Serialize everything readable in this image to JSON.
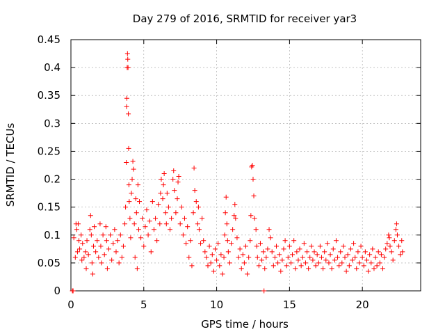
{
  "chart_data": {
    "type": "scatter",
    "title": "Day 279 of 2016, SRMTID for receiver yar3",
    "xlabel": "GPS time / hours",
    "ylabel": "SRMTID / TECUs",
    "xlim": [
      0,
      24
    ],
    "ylim": [
      0,
      0.45
    ],
    "xticks": [
      0,
      5,
      10,
      15,
      20
    ],
    "xtick_labels": [
      "0",
      "5",
      "10",
      "15",
      "20"
    ],
    "yticks": [
      0,
      0.05,
      0.1,
      0.15,
      0.2,
      0.25,
      0.3,
      0.35,
      0.4,
      0.45
    ],
    "ytick_labels": [
      "0",
      "0.05",
      "0.1",
      "0.15",
      "0.2",
      "0.25",
      "0.3",
      "0.35",
      "0.4",
      "0.45"
    ],
    "grid": true,
    "marker": "+",
    "color": "#ff0000",
    "series": [
      {
        "name": "SRMTID",
        "points": [
          [
            0.1,
            0.0
          ],
          [
            0.15,
            0.0
          ],
          [
            13.25,
            0.0
          ],
          [
            0.2,
            0.095
          ],
          [
            0.3,
            0.06
          ],
          [
            0.35,
            0.12
          ],
          [
            0.4,
            0.11
          ],
          [
            0.45,
            0.07
          ],
          [
            0.5,
            0.12
          ],
          [
            0.55,
            0.09
          ],
          [
            0.6,
            0.075
          ],
          [
            0.7,
            0.1
          ],
          [
            0.75,
            0.055
          ],
          [
            0.8,
            0.085
          ],
          [
            0.9,
            0.06
          ],
          [
            1.0,
            0.07
          ],
          [
            1.05,
            0.04
          ],
          [
            1.1,
            0.09
          ],
          [
            1.2,
            0.065
          ],
          [
            1.3,
            0.11
          ],
          [
            1.35,
            0.135
          ],
          [
            1.4,
            0.1
          ],
          [
            1.45,
            0.05
          ],
          [
            1.5,
            0.03
          ],
          [
            1.55,
            0.08
          ],
          [
            1.6,
            0.115
          ],
          [
            1.7,
            0.07
          ],
          [
            1.8,
            0.09
          ],
          [
            1.9,
            0.06
          ],
          [
            2.0,
            0.12
          ],
          [
            2.05,
            0.08
          ],
          [
            2.1,
            0.05
          ],
          [
            2.2,
            0.1
          ],
          [
            2.3,
            0.065
          ],
          [
            2.4,
            0.115
          ],
          [
            2.45,
            0.09
          ],
          [
            2.5,
            0.04
          ],
          [
            2.6,
            0.075
          ],
          [
            2.7,
            0.1
          ],
          [
            2.8,
            0.055
          ],
          [
            2.9,
            0.085
          ],
          [
            3.0,
            0.11
          ],
          [
            3.1,
            0.07
          ],
          [
            3.2,
            0.09
          ],
          [
            3.3,
            0.05
          ],
          [
            3.4,
            0.1
          ],
          [
            3.5,
            0.06
          ],
          [
            3.6,
            0.08
          ],
          [
            3.7,
            0.12
          ],
          [
            3.75,
            0.15
          ],
          [
            3.8,
            0.23
          ],
          [
            3.82,
            0.33
          ],
          [
            3.84,
            0.345
          ],
          [
            3.86,
            0.4
          ],
          [
            3.88,
            0.425
          ],
          [
            3.9,
            0.415
          ],
          [
            3.92,
            0.4
          ],
          [
            3.94,
            0.317
          ],
          [
            3.96,
            0.255
          ],
          [
            3.98,
            0.19
          ],
          [
            4.0,
            0.16
          ],
          [
            4.05,
            0.13
          ],
          [
            4.1,
            0.095
          ],
          [
            4.15,
            0.175
          ],
          [
            4.2,
            0.2
          ],
          [
            4.25,
            0.232
          ],
          [
            4.3,
            0.218
          ],
          [
            4.35,
            0.12
          ],
          [
            4.4,
            0.06
          ],
          [
            4.45,
            0.165
          ],
          [
            4.5,
            0.14
          ],
          [
            4.55,
            0.04
          ],
          [
            4.6,
            0.19
          ],
          [
            4.65,
            0.11
          ],
          [
            4.7,
            0.16
          ],
          [
            4.8,
            0.095
          ],
          [
            4.9,
            0.13
          ],
          [
            5.0,
            0.08
          ],
          [
            5.1,
            0.115
          ],
          [
            5.2,
            0.145
          ],
          [
            5.3,
            0.1
          ],
          [
            5.4,
            0.125
          ],
          [
            5.5,
            0.07
          ],
          [
            5.6,
            0.16
          ],
          [
            5.7,
            0.11
          ],
          [
            5.8,
            0.13
          ],
          [
            5.9,
            0.09
          ],
          [
            6.0,
            0.155
          ],
          [
            6.1,
            0.12
          ],
          [
            6.15,
            0.175
          ],
          [
            6.2,
            0.2
          ],
          [
            6.3,
            0.165
          ],
          [
            6.35,
            0.19
          ],
          [
            6.4,
            0.21
          ],
          [
            6.5,
            0.14
          ],
          [
            6.55,
            0.12
          ],
          [
            6.6,
            0.175
          ],
          [
            6.7,
            0.15
          ],
          [
            6.8,
            0.11
          ],
          [
            6.9,
            0.13
          ],
          [
            7.0,
            0.2
          ],
          [
            7.05,
            0.215
          ],
          [
            7.1,
            0.18
          ],
          [
            7.2,
            0.14
          ],
          [
            7.3,
            0.165
          ],
          [
            7.35,
            0.195
          ],
          [
            7.4,
            0.205
          ],
          [
            7.5,
            0.12
          ],
          [
            7.6,
            0.15
          ],
          [
            7.7,
            0.1
          ],
          [
            7.8,
            0.13
          ],
          [
            7.9,
            0.085
          ],
          [
            8.0,
            0.115
          ],
          [
            8.1,
            0.06
          ],
          [
            8.2,
            0.09
          ],
          [
            8.3,
            0.045
          ],
          [
            8.4,
            0.14
          ],
          [
            8.45,
            0.22
          ],
          [
            8.5,
            0.18
          ],
          [
            8.6,
            0.16
          ],
          [
            8.7,
            0.12
          ],
          [
            8.75,
            0.15
          ],
          [
            8.8,
            0.11
          ],
          [
            8.9,
            0.085
          ],
          [
            9.0,
            0.13
          ],
          [
            9.1,
            0.09
          ],
          [
            9.2,
            0.07
          ],
          [
            9.3,
            0.06
          ],
          [
            9.4,
            0.045
          ],
          [
            9.5,
            0.08
          ],
          [
            9.6,
            0.05
          ],
          [
            9.7,
            0.065
          ],
          [
            9.8,
            0.035
          ],
          [
            9.9,
            0.075
          ],
          [
            10.0,
            0.055
          ],
          [
            10.1,
            0.085
          ],
          [
            10.2,
            0.045
          ],
          [
            10.3,
            0.065
          ],
          [
            10.4,
            0.03
          ],
          [
            10.5,
            0.06
          ],
          [
            10.55,
            0.1
          ],
          [
            10.6,
            0.14
          ],
          [
            10.65,
            0.168
          ],
          [
            10.7,
            0.12
          ],
          [
            10.75,
            0.09
          ],
          [
            10.8,
            0.07
          ],
          [
            10.9,
            0.05
          ],
          [
            11.0,
            0.085
          ],
          [
            11.1,
            0.11
          ],
          [
            11.2,
            0.135
          ],
          [
            11.25,
            0.155
          ],
          [
            11.3,
            0.13
          ],
          [
            11.4,
            0.095
          ],
          [
            11.5,
            0.06
          ],
          [
            11.6,
            0.075
          ],
          [
            11.7,
            0.04
          ],
          [
            11.8,
            0.065
          ],
          [
            11.9,
            0.05
          ],
          [
            12.0,
            0.08
          ],
          [
            12.1,
            0.03
          ],
          [
            12.2,
            0.06
          ],
          [
            12.3,
            0.09
          ],
          [
            12.35,
            0.135
          ],
          [
            12.4,
            0.222
          ],
          [
            12.45,
            0.225
          ],
          [
            12.5,
            0.2
          ],
          [
            12.55,
            0.17
          ],
          [
            12.6,
            0.13
          ],
          [
            12.7,
            0.11
          ],
          [
            12.75,
            0.08
          ],
          [
            12.8,
            0.06
          ],
          [
            12.9,
            0.045
          ],
          [
            13.0,
            0.085
          ],
          [
            13.1,
            0.055
          ],
          [
            13.2,
            0.07
          ],
          [
            13.3,
            0.04
          ],
          [
            13.4,
            0.06
          ],
          [
            13.5,
            0.075
          ],
          [
            13.6,
            0.11
          ],
          [
            13.7,
            0.095
          ],
          [
            13.8,
            0.07
          ],
          [
            13.9,
            0.045
          ],
          [
            14.0,
            0.06
          ],
          [
            14.1,
            0.08
          ],
          [
            14.2,
            0.05
          ],
          [
            14.3,
            0.065
          ],
          [
            14.4,
            0.035
          ],
          [
            14.5,
            0.055
          ],
          [
            14.6,
            0.075
          ],
          [
            14.7,
            0.09
          ],
          [
            14.8,
            0.045
          ],
          [
            14.9,
            0.06
          ],
          [
            15.0,
            0.08
          ],
          [
            15.1,
            0.05
          ],
          [
            15.2,
            0.065
          ],
          [
            15.3,
            0.09
          ],
          [
            15.4,
            0.04
          ],
          [
            15.5,
            0.07
          ],
          [
            15.6,
            0.055
          ],
          [
            15.7,
            0.075
          ],
          [
            15.8,
            0.045
          ],
          [
            15.9,
            0.06
          ],
          [
            16.0,
            0.085
          ],
          [
            16.1,
            0.05
          ],
          [
            16.2,
            0.07
          ],
          [
            16.3,
            0.04
          ],
          [
            16.4,
            0.06
          ],
          [
            16.5,
            0.08
          ],
          [
            16.6,
            0.055
          ],
          [
            16.7,
            0.07
          ],
          [
            16.8,
            0.045
          ],
          [
            16.9,
            0.065
          ],
          [
            17.0,
            0.05
          ],
          [
            17.1,
            0.08
          ],
          [
            17.2,
            0.06
          ],
          [
            17.3,
            0.04
          ],
          [
            17.4,
            0.07
          ],
          [
            17.5,
            0.055
          ],
          [
            17.6,
            0.085
          ],
          [
            17.7,
            0.05
          ],
          [
            17.8,
            0.065
          ],
          [
            17.9,
            0.04
          ],
          [
            18.0,
            0.075
          ],
          [
            18.1,
            0.055
          ],
          [
            18.2,
            0.09
          ],
          [
            18.3,
            0.06
          ],
          [
            18.4,
            0.045
          ],
          [
            18.5,
            0.07
          ],
          [
            18.6,
            0.05
          ],
          [
            18.7,
            0.08
          ],
          [
            18.8,
            0.06
          ],
          [
            18.9,
            0.035
          ],
          [
            19.0,
            0.065
          ],
          [
            19.1,
            0.045
          ],
          [
            19.2,
            0.075
          ],
          [
            19.3,
            0.055
          ],
          [
            19.4,
            0.085
          ],
          [
            19.5,
            0.06
          ],
          [
            19.6,
            0.04
          ],
          [
            19.7,
            0.07
          ],
          [
            19.8,
            0.05
          ],
          [
            19.9,
            0.08
          ],
          [
            20.0,
            0.06
          ],
          [
            20.1,
            0.045
          ],
          [
            20.2,
            0.07
          ],
          [
            20.3,
            0.055
          ],
          [
            20.4,
            0.035
          ],
          [
            20.5,
            0.065
          ],
          [
            20.6,
            0.05
          ],
          [
            20.7,
            0.075
          ],
          [
            20.8,
            0.04
          ],
          [
            20.9,
            0.06
          ],
          [
            21.0,
            0.045
          ],
          [
            21.1,
            0.07
          ],
          [
            21.2,
            0.05
          ],
          [
            21.3,
            0.065
          ],
          [
            21.4,
            0.04
          ],
          [
            21.5,
            0.06
          ],
          [
            21.6,
            0.075
          ],
          [
            21.7,
            0.085
          ],
          [
            21.8,
            0.1
          ],
          [
            21.85,
            0.095
          ],
          [
            21.9,
            0.08
          ],
          [
            22.0,
            0.07
          ],
          [
            22.1,
            0.055
          ],
          [
            22.2,
            0.09
          ],
          [
            22.3,
            0.11
          ],
          [
            22.35,
            0.12
          ],
          [
            22.4,
            0.1
          ],
          [
            22.5,
            0.08
          ],
          [
            22.6,
            0.065
          ],
          [
            22.7,
            0.09
          ],
          [
            22.75,
            0.07
          ]
        ]
      }
    ]
  }
}
